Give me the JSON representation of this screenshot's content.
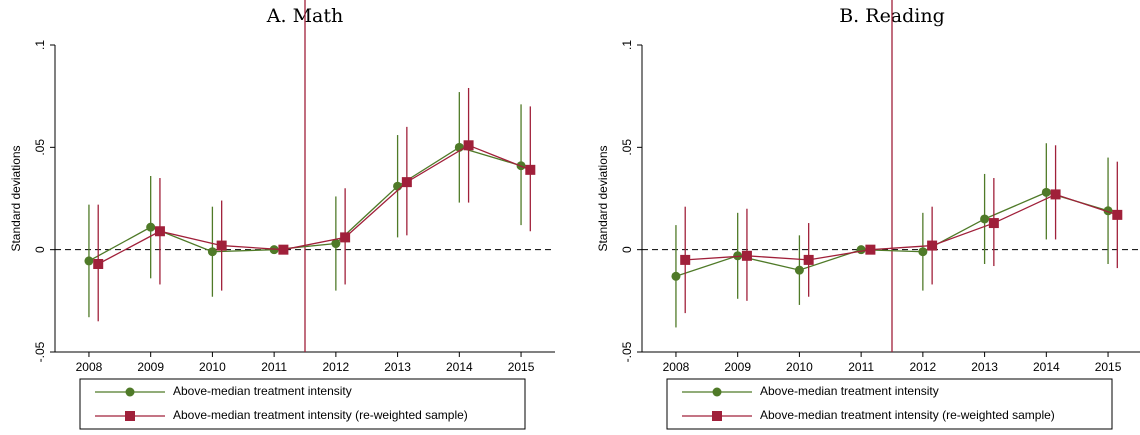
{
  "chart_data": [
    {
      "type": "line",
      "title": "A. Math",
      "ylabel": "Standard deviations",
      "x": [
        2008,
        2009,
        2010,
        2011,
        2012,
        2013,
        2014,
        2015
      ],
      "xlim": [
        2007.45,
        2015.55
      ],
      "xticks": [
        2008,
        2009,
        2010,
        2011,
        2012,
        2013,
        2014,
        2015
      ],
      "ylim": [
        -0.05,
        0.1
      ],
      "yticks": [
        {
          "value": -0.05,
          "label": "-.05"
        },
        0,
        {
          "value": 0.05,
          "label": ".05"
        },
        {
          "value": 0.1,
          "label": ".1"
        }
      ],
      "vline": 2011.5,
      "hline": 0,
      "legend": "bottom",
      "series": [
        {
          "name": "Above-median treatment intensity",
          "color": "#4f7a28",
          "marker": "circle",
          "values": [
            -0.0055,
            0.011,
            -0.001,
            0,
            0.003,
            0.031,
            0.05,
            0.041
          ],
          "lower": [
            -0.033,
            -0.014,
            -0.023,
            0,
            -0.02,
            0.006,
            0.023,
            0.012
          ],
          "upper": [
            0.022,
            0.036,
            0.021,
            0,
            0.026,
            0.056,
            0.077,
            0.071
          ]
        },
        {
          "name": "Above-median treatment intensity (re-weighted sample)",
          "color": "#a0203a",
          "marker": "square",
          "values": [
            -0.007,
            0.009,
            0.002,
            0,
            0.006,
            0.033,
            0.051,
            0.039
          ],
          "lower": [
            -0.035,
            -0.017,
            -0.02,
            0,
            -0.017,
            0.007,
            0.023,
            0.009
          ],
          "upper": [
            0.022,
            0.035,
            0.024,
            0,
            0.03,
            0.06,
            0.079,
            0.07
          ]
        }
      ]
    },
    {
      "type": "line",
      "title": "B. Reading",
      "ylabel": "Standard deviations",
      "x": [
        2008,
        2009,
        2010,
        2011,
        2012,
        2013,
        2014,
        2015
      ],
      "xlim": [
        2007.45,
        2015.55
      ],
      "xticks": [
        2008,
        2009,
        2010,
        2011,
        2012,
        2013,
        2014,
        2015
      ],
      "ylim": [
        -0.05,
        0.1
      ],
      "yticks": [
        {
          "value": -0.05,
          "label": "-.05"
        },
        0,
        {
          "value": 0.05,
          "label": ".05"
        },
        {
          "value": 0.1,
          "label": ".1"
        }
      ],
      "vline": 2011.5,
      "hline": 0,
      "legend": "bottom",
      "series": [
        {
          "name": "Above-median treatment intensity",
          "color": "#4f7a28",
          "marker": "circle",
          "values": [
            -0.013,
            -0.003,
            -0.01,
            0,
            -0.001,
            0.015,
            0.028,
            0.019
          ],
          "lower": [
            -0.038,
            -0.024,
            -0.027,
            0,
            -0.02,
            -0.007,
            0.005,
            -0.007
          ],
          "upper": [
            0.012,
            0.018,
            0.007,
            0,
            0.018,
            0.037,
            0.052,
            0.045
          ]
        },
        {
          "name": "Above-median treatment intensity (re-weighted sample)",
          "color": "#a0203a",
          "marker": "square",
          "values": [
            -0.005,
            -0.003,
            -0.005,
            0,
            0.002,
            0.013,
            0.027,
            0.017
          ],
          "lower": [
            -0.031,
            -0.025,
            -0.023,
            0,
            -0.017,
            -0.008,
            0.005,
            -0.009
          ],
          "upper": [
            0.021,
            0.02,
            0.013,
            0,
            0.021,
            0.035,
            0.051,
            0.043
          ]
        }
      ]
    }
  ]
}
